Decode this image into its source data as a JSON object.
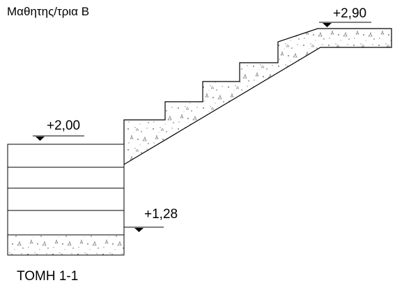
{
  "header": {
    "text": "Μαθητης/τρια Β"
  },
  "levels": {
    "top": "+2,90",
    "landing": "+2,00",
    "bottom": "+1,28"
  },
  "section": {
    "title": "ΤΟΜΗ 1-1"
  },
  "colors": {
    "line": "#000000",
    "speckle": "#555555",
    "paper": "#ffffff"
  }
}
